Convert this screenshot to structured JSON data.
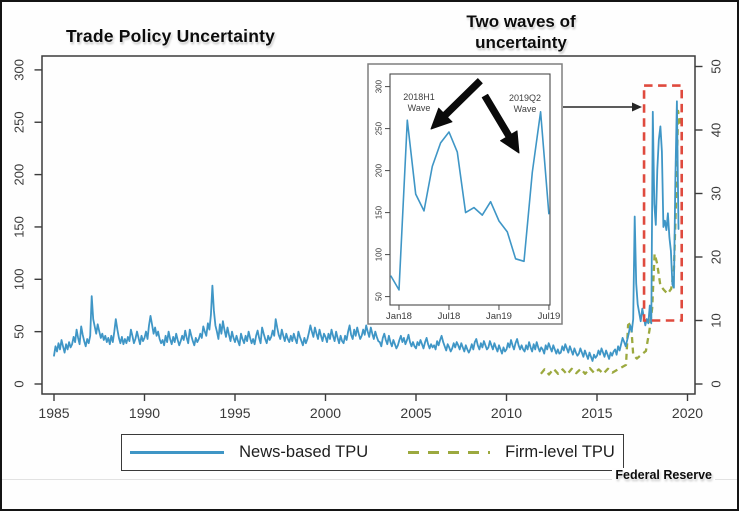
{
  "figure": {
    "title": "Trade Policy Uncertainty",
    "annotation": {
      "line1": "Two waves of",
      "line2": "uncertainty"
    },
    "source": "Federal Reserve"
  },
  "legend": {
    "position": "bottom",
    "items": [
      {
        "label": "News-based TPU",
        "style": "solid",
        "color": "#3f96c6"
      },
      {
        "label": "Firm-level TPU",
        "style": "dashed",
        "color": "#9ca93f"
      }
    ]
  },
  "colors": {
    "news": "#3f96c6",
    "firm": "#9ca93f",
    "highlight": "#df4a3e",
    "axis": "#3c3c3c",
    "tick_text": "#3a3a3a"
  },
  "chart_data": [
    {
      "type": "line",
      "title": "Trade Policy Uncertainty",
      "x_ticks": [
        1985,
        1990,
        1995,
        2000,
        2005,
        2010,
        2015,
        2020
      ],
      "x_range": [
        1984.3,
        2020.9
      ],
      "left_axis": {
        "ticks": [
          0,
          50,
          100,
          150,
          200,
          250,
          300
        ],
        "range": [
          0,
          300
        ]
      },
      "right_axis": {
        "ticks": [
          0,
          10,
          20,
          30,
          40,
          50
        ],
        "range": [
          0,
          50
        ]
      },
      "grid": false,
      "legend_position": "bottom",
      "series": [
        {
          "name": "News-based TPU",
          "axis": "left",
          "style": "solid",
          "color": "#3f96c6",
          "frequency": "monthly",
          "start_year": 1985,
          "points_per_year": 12,
          "values": [
            27,
            36,
            31,
            39,
            33,
            42,
            36,
            30,
            38,
            33,
            40,
            35,
            38,
            45,
            40,
            52,
            44,
            38,
            55,
            47,
            41,
            36,
            43,
            39,
            46,
            84,
            62,
            55,
            48,
            57,
            50,
            44,
            48,
            42,
            46,
            40,
            44,
            38,
            46,
            40,
            50,
            62,
            52,
            44,
            39,
            45,
            38,
            43,
            39,
            45,
            41,
            52,
            46,
            39,
            43,
            50,
            44,
            38,
            46,
            41,
            44,
            50,
            43,
            56,
            65,
            57,
            48,
            54,
            46,
            50,
            43,
            39,
            42,
            37,
            46,
            40,
            50,
            43,
            38,
            45,
            40,
            48,
            42,
            37,
            41,
            46,
            42,
            51,
            44,
            39,
            52,
            46,
            41,
            37,
            44,
            40,
            43,
            48,
            44,
            55,
            50,
            46,
            58,
            52,
            66,
            94,
            70,
            56,
            50,
            43,
            57,
            48,
            60,
            52,
            45,
            54,
            47,
            41,
            50,
            44,
            40,
            46,
            41,
            37,
            48,
            43,
            39,
            46,
            41,
            50,
            44,
            39,
            43,
            38,
            46,
            51,
            44,
            39,
            54,
            48,
            43,
            39,
            46,
            42,
            45,
            51,
            46,
            62,
            54,
            47,
            43,
            52,
            46,
            41,
            48,
            43,
            40,
            46,
            41,
            48,
            43,
            39,
            50,
            45,
            41,
            37,
            44,
            39,
            43,
            49,
            56,
            50,
            45,
            54,
            48,
            43,
            52,
            46,
            41,
            48,
            45,
            40,
            48,
            43,
            52,
            46,
            41,
            50,
            44,
            39,
            46,
            41,
            39,
            46,
            42,
            50,
            56,
            47,
            43,
            52,
            46,
            54,
            48,
            43,
            46,
            52,
            47,
            56,
            50,
            45,
            54,
            48,
            43,
            50,
            45,
            41,
            40,
            36,
            44,
            48,
            42,
            38,
            46,
            40,
            36,
            42,
            38,
            34,
            37,
            42,
            46,
            40,
            44,
            38,
            42,
            47,
            40,
            36,
            40,
            36,
            34,
            40,
            37,
            42,
            38,
            34,
            40,
            44,
            38,
            34,
            38,
            35,
            37,
            33,
            41,
            37,
            42,
            46,
            40,
            36,
            32,
            38,
            35,
            31,
            34,
            39,
            35,
            40,
            37,
            33,
            39,
            35,
            31,
            37,
            33,
            30,
            33,
            38,
            33,
            40,
            43,
            37,
            33,
            39,
            35,
            41,
            37,
            33,
            35,
            41,
            37,
            33,
            39,
            35,
            31,
            37,
            33,
            29,
            35,
            31,
            33,
            39,
            35,
            42,
            37,
            33,
            39,
            43,
            37,
            33,
            37,
            33,
            31,
            37,
            33,
            40,
            35,
            31,
            38,
            33,
            40,
            35,
            31,
            35,
            33,
            29,
            37,
            33,
            39,
            35,
            31,
            37,
            33,
            29,
            33,
            29,
            30,
            36,
            32,
            38,
            34,
            30,
            36,
            32,
            28,
            34,
            30,
            27,
            29,
            34,
            30,
            26,
            32,
            28,
            24,
            30,
            26,
            22,
            28,
            25,
            27,
            32,
            28,
            34,
            30,
            26,
            32,
            28,
            24,
            30,
            27,
            31,
            33,
            28,
            36,
            32,
            38,
            44,
            40,
            36,
            42,
            48,
            56,
            50,
            62,
            160,
            96,
            76,
            68,
            60,
            72,
            64,
            56,
            62,
            58,
            75,
            58,
            260,
            172,
            152,
            205,
            233,
            246,
            222,
            150,
            156,
            147,
            163,
            140,
            127,
            95,
            92,
            198,
            270,
            148
          ]
        },
        {
          "name": "Firm-level TPU",
          "axis": "right",
          "style": "dashed",
          "color": "#9ca93f",
          "points": [
            [
              2011.9,
              1.6
            ],
            [
              2012.1,
              2.3
            ],
            [
              2012.35,
              1.5
            ],
            [
              2012.6,
              2.4
            ],
            [
              2012.85,
              1.6
            ],
            [
              2013.1,
              2.3
            ],
            [
              2013.35,
              1.5
            ],
            [
              2013.6,
              2.4
            ],
            [
              2013.85,
              1.7
            ],
            [
              2014.1,
              2.4
            ],
            [
              2014.35,
              1.6
            ],
            [
              2014.6,
              2.5
            ],
            [
              2014.85,
              1.7
            ],
            [
              2015.1,
              2.3
            ],
            [
              2015.35,
              1.6
            ],
            [
              2015.6,
              2.4
            ],
            [
              2015.85,
              1.8
            ],
            [
              2016.1,
              2.2
            ],
            [
              2016.35,
              2.6
            ],
            [
              2016.6,
              3.0
            ],
            [
              2016.72,
              9.3
            ],
            [
              2016.88,
              9.6
            ],
            [
              2017.0,
              4.6
            ],
            [
              2017.2,
              4.0
            ],
            [
              2017.45,
              4.6
            ],
            [
              2017.7,
              5.2
            ],
            [
              2017.9,
              8.5
            ],
            [
              2018.05,
              12.0
            ],
            [
              2018.18,
              20.5
            ],
            [
              2018.32,
              19.0
            ],
            [
              2018.5,
              15.5
            ],
            [
              2018.7,
              14.8
            ],
            [
              2018.9,
              14.2
            ],
            [
              2019.1,
              15.0
            ],
            [
              2019.25,
              18.0
            ],
            [
              2019.38,
              30.0
            ],
            [
              2019.48,
              43.0
            ],
            [
              2019.6,
              41.0
            ]
          ]
        }
      ],
      "highlight_box": {
        "style": "dashed",
        "color": "#df4a3e",
        "x_range": [
          2017.6,
          2019.68
        ],
        "right_axis_value_range": [
          10,
          47
        ]
      }
    },
    {
      "type": "line",
      "role": "inset",
      "x_tick_labels": [
        "Jan18",
        "Jul18",
        "Jan19",
        "Jul19"
      ],
      "x_tick_month_indices": [
        1,
        7,
        13,
        19
      ],
      "y_ticks": [
        50,
        100,
        150,
        200,
        250,
        300
      ],
      "y_range": [
        40,
        315
      ],
      "wave_labels": [
        {
          "line1": "2018H1",
          "line2": "Wave"
        },
        {
          "line1": "2019Q2",
          "line2": "Wave"
        }
      ],
      "series": [
        {
          "name": "News-based TPU (monthly)",
          "color": "#3f96c6",
          "style": "solid",
          "months": [
            "Dec17",
            "Jan18",
            "Feb18",
            "Mar18",
            "Apr18",
            "May18",
            "Jun18",
            "Jul18",
            "Aug18",
            "Sep18",
            "Oct18",
            "Nov18",
            "Dec18",
            "Jan19",
            "Feb19",
            "Mar19",
            "Apr19",
            "May19",
            "Jun19",
            "Jul19"
          ],
          "values": [
            75,
            58,
            260,
            172,
            152,
            205,
            233,
            246,
            222,
            150,
            156,
            147,
            163,
            140,
            127,
            95,
            92,
            198,
            270,
            148
          ]
        }
      ]
    }
  ]
}
